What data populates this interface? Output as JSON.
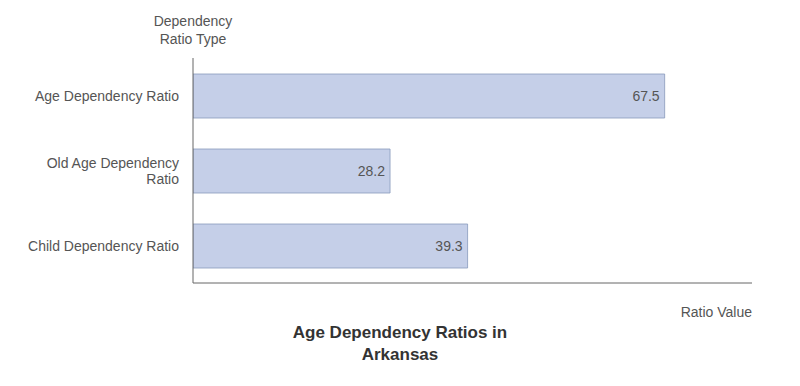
{
  "chart_data": {
    "type": "bar",
    "orientation": "horizontal",
    "title": "Age Dependency Ratios in\nArkansas",
    "xlabel": "Ratio Value",
    "ylabel": "Dependency\nRatio Type",
    "categories": [
      "Age Dependency Ratio",
      "Old Age Dependency\nRatio",
      "Child Dependency Ratio"
    ],
    "values": [
      67.5,
      28.2,
      39.3
    ],
    "color": "#c5cfe8",
    "xlim": [
      0,
      80
    ],
    "data_labels": true,
    "tick_labels": "y",
    "grid": false
  }
}
